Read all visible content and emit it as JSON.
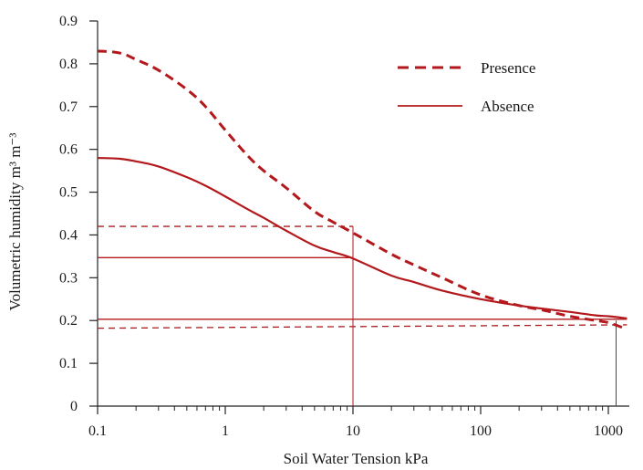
{
  "colors": {
    "series": "#b3191c",
    "axis": "#222222",
    "text": "#1a1a1a"
  },
  "chart_data": {
    "type": "line",
    "xscale": "log",
    "xlabel": "Soil Water Tension kPa",
    "ylabel": "Volumetric humidity m³ m⁻³",
    "xlim": [
      0.1,
      1600
    ],
    "ylim": [
      0,
      0.9
    ],
    "xticks": [
      0.1,
      1,
      10,
      100,
      1000
    ],
    "xtick_labels": [
      "0.1",
      "1",
      "10",
      "100",
      "1000"
    ],
    "yticks": [
      0,
      0.1,
      0.2,
      0.3,
      0.4,
      0.5,
      0.6,
      0.7,
      0.8,
      0.9
    ],
    "ytick_labels": [
      "0",
      "0.1",
      "0.2",
      "0.3",
      "0.4",
      "0.5",
      "0.6",
      "0.7",
      "0.8",
      "0.9"
    ],
    "grid": false,
    "legend_position": "top-right",
    "series": [
      {
        "name": "Presence",
        "style": "dashed",
        "x": [
          0.1,
          0.15,
          0.2,
          0.3,
          0.5,
          0.7,
          1,
          1.5,
          2,
          3,
          5,
          7,
          10,
          20,
          30,
          50,
          100,
          200,
          300,
          500,
          800,
          1000,
          1400
        ],
        "y": [
          0.83,
          0.825,
          0.81,
          0.785,
          0.74,
          0.7,
          0.645,
          0.585,
          0.55,
          0.51,
          0.455,
          0.43,
          0.405,
          0.355,
          0.33,
          0.3,
          0.26,
          0.235,
          0.225,
          0.21,
          0.2,
          0.195,
          0.18
        ]
      },
      {
        "name": "Absence",
        "style": "solid",
        "x": [
          0.1,
          0.15,
          0.2,
          0.3,
          0.5,
          0.7,
          1,
          1.5,
          2,
          3,
          5,
          7,
          10,
          20,
          30,
          50,
          100,
          200,
          300,
          500,
          800,
          1000,
          1400
        ],
        "y": [
          0.58,
          0.578,
          0.572,
          0.56,
          0.535,
          0.515,
          0.49,
          0.46,
          0.44,
          0.41,
          0.375,
          0.36,
          0.345,
          0.305,
          0.29,
          0.27,
          0.25,
          0.235,
          0.228,
          0.22,
          0.212,
          0.21,
          0.205
        ]
      }
    ],
    "reference_lines": [
      {
        "series": "Presence",
        "style": "dashed",
        "x_from": 0.1,
        "x_to": 10,
        "y": 0.42
      },
      {
        "series": "Absence",
        "style": "solid",
        "x_from": 0.1,
        "x_to": 10,
        "y": 0.347
      },
      {
        "series": "Absence",
        "style": "solid",
        "x_from": 0.1,
        "x_to": 1400,
        "y": 0.203
      },
      {
        "series": "Presence",
        "style": "dashed",
        "x_from": 0.1,
        "x_to": 1400,
        "y": 0.182,
        "y_end": 0.19
      },
      {
        "style": "vertical",
        "x": 10,
        "y_from": 0,
        "y_to": 0.42
      },
      {
        "style": "vertical",
        "x": 1150,
        "y_from": 0,
        "y_to": 0.2
      }
    ]
  }
}
